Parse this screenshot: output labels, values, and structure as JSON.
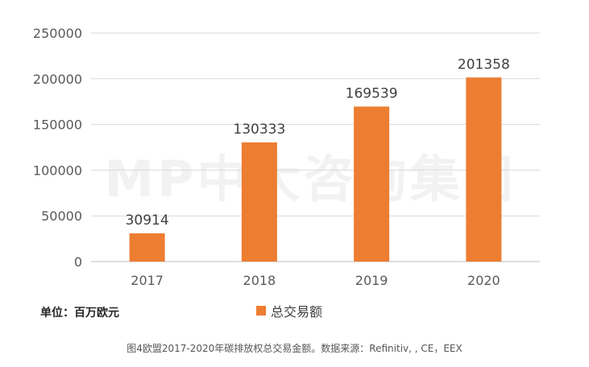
{
  "watermark": "MP中大咨询集团",
  "unit_label": "单位：百万欧元",
  "caption": "图4欧盟2017-2020年碳排放权总交易金额。数据来源：Refinitiv, , CE，EEX",
  "chart_data": {
    "type": "bar",
    "categories": [
      "2017",
      "2018",
      "2019",
      "2020"
    ],
    "series": [
      {
        "name": "总交易额",
        "values": [
          30914,
          130333,
          169539,
          201358
        ],
        "color": "#ed7d31"
      }
    ],
    "yticks": [
      0,
      50000,
      100000,
      150000,
      200000,
      250000
    ],
    "ylim": [
      0,
      250000
    ],
    "grid": true,
    "legend": "bottom"
  }
}
